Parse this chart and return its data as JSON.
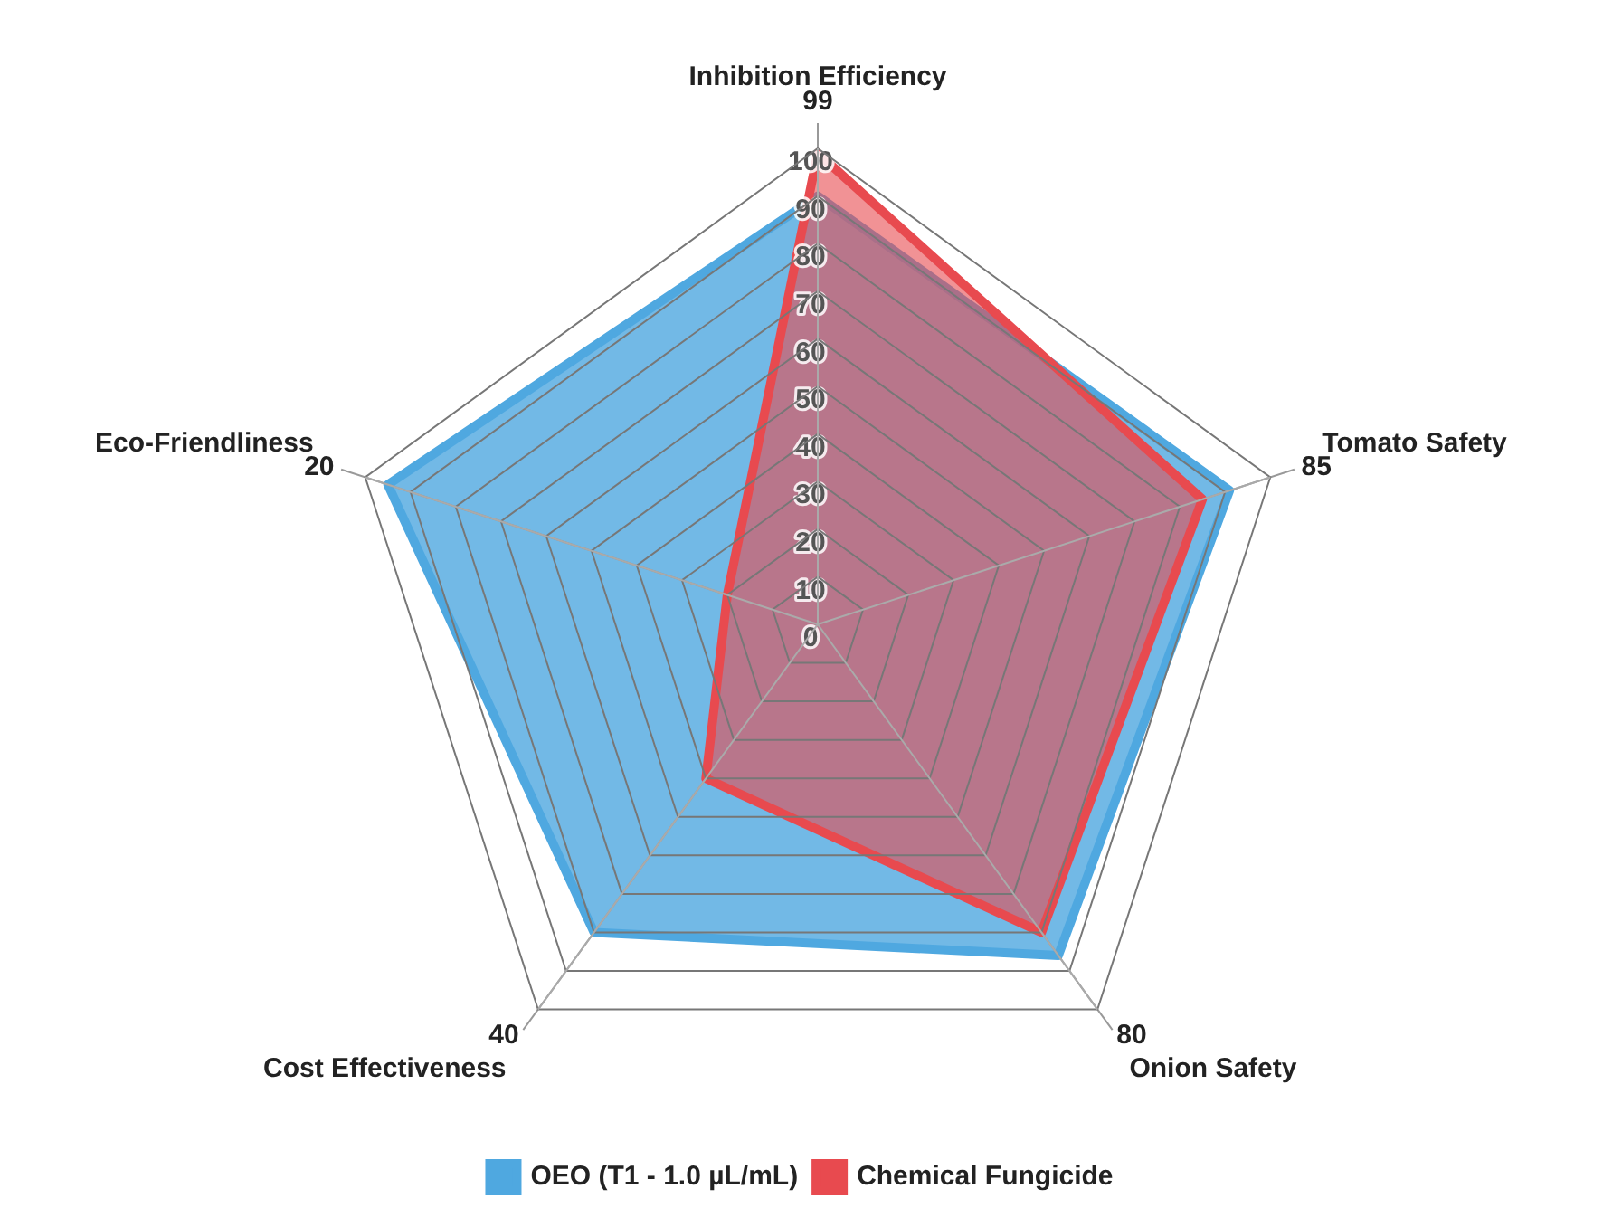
{
  "chart_data": {
    "type": "radar",
    "categories": [
      "Inhibition Efficiency",
      "Tomato Safety",
      "Onion Safety",
      "Cost Effectiveness",
      "Eco-Friendliness"
    ],
    "series": [
      {
        "name": "OEO (T1 - 1.0 µL/mL)",
        "color": "#4fa8e0",
        "values": [
          90,
          91,
          86,
          80,
          95
        ]
      },
      {
        "name": "Chemical Fungicide",
        "color": "#e84a4f",
        "values": [
          99,
          85,
          80,
          40,
          20
        ],
        "value_labels": [
          "99",
          "85",
          "80",
          "40",
          "20"
        ]
      }
    ],
    "ylim": [
      0,
      100
    ],
    "yticks": [
      0,
      10,
      20,
      30,
      40,
      50,
      60,
      70,
      80,
      90,
      100
    ],
    "grid": true,
    "legend": "bottom",
    "marker": "none"
  }
}
